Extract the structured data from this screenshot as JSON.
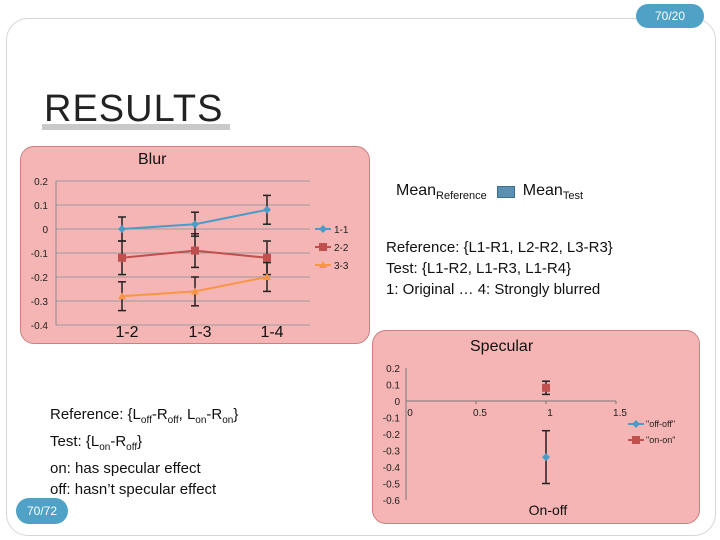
{
  "page_number": "70/20",
  "corner_number": "70/72",
  "title": "RESULTS",
  "mean_legend": {
    "mean": "Mean",
    "ref_sub": "Reference",
    "test_sub": "Test"
  },
  "reference_note": {
    "line1": "Reference: {L1-R1, L2-R2, L3-R3}",
    "line2": "Test: {L1-R2, L1-R3, L1-R4}",
    "line3": "1: Original … 4: Strongly blurred"
  },
  "specular_note": {
    "line1_a": "Reference: {L",
    "line1_b": "off",
    "line1_c": "-R",
    "line1_d": "off",
    "line1_e": ", L",
    "line1_f": "on",
    "line1_g": "-R",
    "line1_h": "on",
    "line1_i": "}",
    "line2_a": "Test: {L",
    "line2_b": "on",
    "line2_c": "-R",
    "line2_d": "off",
    "line2_e": "}",
    "line3": "on: has specular effect",
    "line4": "off: hasn’t specular effect"
  },
  "colors": {
    "blue": "#4a9cc7",
    "red": "#c0504d",
    "orange": "#f79646",
    "panel": "#f5b5b5",
    "badge": "#4fa1c6"
  },
  "chart_data": [
    {
      "type": "line",
      "title": "Blur",
      "categories": [
        "1-2",
        "1-3",
        "1-4"
      ],
      "ylim": [
        -0.4,
        0.2
      ],
      "yticks": [
        0.2,
        0.1,
        0,
        -0.1,
        -0.2,
        -0.3,
        -0.4
      ],
      "ytick_labels": [
        "0.2",
        "0.1",
        "0",
        "-0.1",
        "-0.2",
        "-0.3",
        "-0.4"
      ],
      "legend_position": "right",
      "series": [
        {
          "name": "1-1",
          "color": "#4a9cc7",
          "marker": "diamond",
          "values": [
            0.0,
            0.02,
            0.08
          ],
          "err_low": [
            0.05,
            0.05,
            0.06
          ],
          "err_high": [
            0.05,
            0.05,
            0.06
          ]
        },
        {
          "name": "2-2",
          "color": "#c0504d",
          "marker": "square",
          "values": [
            -0.12,
            -0.09,
            -0.12
          ],
          "err_low": [
            0.07,
            0.07,
            0.07
          ],
          "err_high": [
            0.07,
            0.07,
            0.07
          ]
        },
        {
          "name": "3-3",
          "color": "#f79646",
          "marker": "triangle",
          "values": [
            -0.28,
            -0.26,
            -0.2
          ],
          "err_low": [
            0.06,
            0.06,
            0.06
          ],
          "err_high": [
            0.06,
            0.06,
            0.06
          ]
        }
      ]
    },
    {
      "type": "scatter",
      "title": "Specular",
      "xlabel": "On-off",
      "xlim": [
        0,
        1.5
      ],
      "ylim": [
        -0.6,
        0.2
      ],
      "xticks": [
        0,
        0.5,
        1,
        1.5
      ],
      "xtick_labels": [
        "0",
        "0.5",
        "1",
        "1.5"
      ],
      "yticks": [
        0.2,
        0.1,
        0,
        -0.1,
        -0.2,
        -0.3,
        -0.4,
        -0.5,
        -0.6
      ],
      "ytick_labels": [
        "0.2",
        "0.1",
        "0",
        "-0.1",
        "-0.2",
        "-0.3",
        "-0.4",
        "-0.5",
        "-0.6"
      ],
      "legend_position": "right",
      "series": [
        {
          "name": "\"off-off\"",
          "color": "#4a9cc7",
          "marker": "diamond",
          "x": [
            1
          ],
          "y": [
            -0.34
          ],
          "err": [
            0.16
          ]
        },
        {
          "name": "\"on-on\"",
          "color": "#c0504d",
          "marker": "square",
          "x": [
            1
          ],
          "y": [
            0.08
          ],
          "err": [
            0.04
          ]
        }
      ]
    }
  ]
}
